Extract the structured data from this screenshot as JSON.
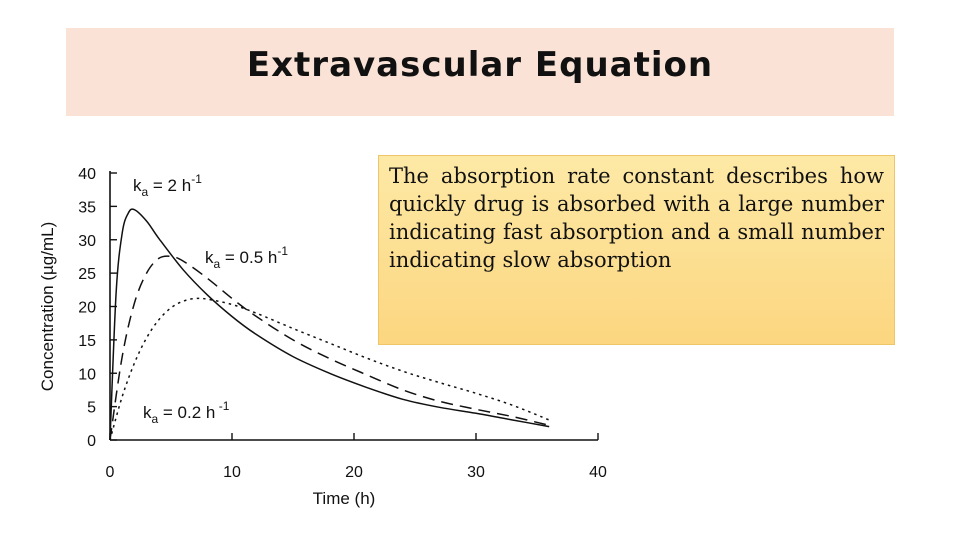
{
  "slide": {
    "title": "Extravascular Equation",
    "note": "The absorption rate constant describes how quickly drug is absorbed with a large number indicating fast absorption and a small number indicating slow absorption"
  },
  "chart_data": {
    "type": "line",
    "title": "",
    "xlabel": "Time (h)",
    "ylabel": "Concentration (µg/mL)",
    "xlim": [
      0,
      40
    ],
    "ylim": [
      0,
      40
    ],
    "xticks": [
      0,
      10,
      20,
      30,
      40
    ],
    "yticks": [
      0,
      5,
      10,
      15,
      20,
      25,
      30,
      35,
      40
    ],
    "grid": false,
    "series": [
      {
        "name": "ka = 2 h-1",
        "label_main": "k",
        "label_sub": "a",
        "label_rest": " = 2 h",
        "label_sup": "-1",
        "style": "solid",
        "x": [
          0,
          0.5,
          1,
          1.5,
          2,
          3,
          4,
          6,
          8,
          10,
          12,
          15,
          18,
          21,
          24,
          27,
          30,
          33,
          36
        ],
        "y": [
          0,
          22,
          31,
          34,
          34.5,
          32.8,
          30.2,
          25.5,
          21.7,
          18.5,
          15.8,
          12.5,
          10.0,
          7.9,
          6.1,
          4.9,
          4.0,
          3.0,
          2.0
        ]
      },
      {
        "name": "ka = 0.5 h-1",
        "label_main": "k",
        "label_sub": "a",
        "label_rest": " = 0.5 h",
        "label_sup": "-1",
        "style": "dashed",
        "x": [
          0,
          1,
          2,
          3,
          4,
          5,
          6,
          8,
          10,
          12,
          15,
          18,
          21,
          24,
          27,
          30,
          33,
          36
        ],
        "y": [
          0,
          12.5,
          20.5,
          25.0,
          27.2,
          27.5,
          26.8,
          24.2,
          21.2,
          18.5,
          15.0,
          12.2,
          9.8,
          7.5,
          5.8,
          4.6,
          3.5,
          2.2
        ]
      },
      {
        "name": "ka = 0.2 h-1",
        "label_main": "k",
        "label_sub": "a",
        "label_rest": " = 0.2 h",
        "label_sup": " -1",
        "style": "dotted",
        "x": [
          0,
          1,
          2,
          3,
          4,
          5,
          6,
          7,
          8,
          10,
          12,
          15,
          18,
          21,
          24,
          27,
          30,
          33,
          36
        ],
        "y": [
          0,
          6.5,
          11.5,
          15.3,
          18.0,
          19.8,
          20.8,
          21.2,
          21.1,
          20.3,
          19.0,
          16.7,
          14.5,
          12.3,
          10.3,
          8.6,
          7.0,
          5.2,
          3.0
        ]
      }
    ]
  }
}
